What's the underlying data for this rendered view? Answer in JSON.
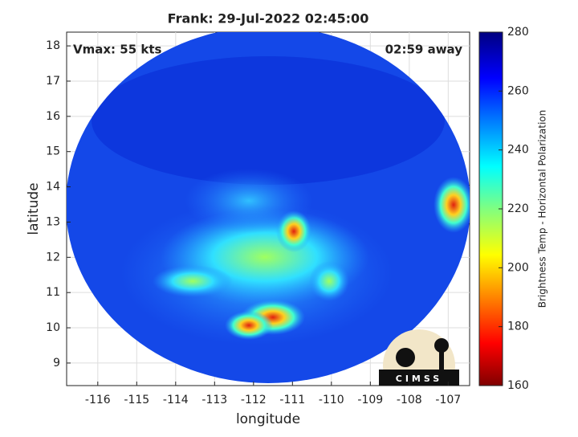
{
  "chart_data": {
    "type": "image",
    "title": "Frank: 29-Jul-2022 02:45:00",
    "xlabel": "longitude",
    "ylabel": "latitude",
    "annotations": [
      "Vmax: 55 kts",
      "02:59 away"
    ],
    "logo_text": "CIMSS",
    "xlim": [
      -116.8,
      -106.45
    ],
    "xticks": [
      -116,
      -115,
      -114,
      -113,
      -112,
      -111,
      -110,
      -109,
      -108,
      -107
    ],
    "ylim": [
      8.36,
      18.39
    ],
    "yticks": [
      9,
      10,
      11,
      12,
      13,
      14,
      15,
      16,
      17,
      18
    ],
    "grid": true,
    "colorbar": {
      "label": "Brightness Temp - Horizontal Polarization",
      "lim": [
        160,
        280
      ],
      "ticks": [
        160,
        180,
        200,
        220,
        240,
        260,
        280
      ],
      "colormap": "jet"
    }
  }
}
